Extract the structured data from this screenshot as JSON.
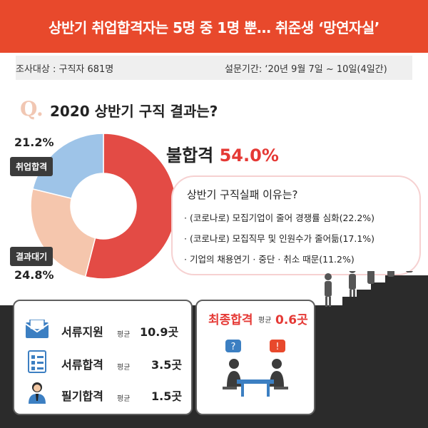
{
  "banner": {
    "title": "상반기 취업합격자는 5명 중 1명 뿐… 취준생 ‘망연자실’"
  },
  "survey": {
    "target": "조사대상 : 구직자 681명",
    "period": "설문기간: ‘20년 9월 7일 ~ 10일(4일간)"
  },
  "question": {
    "mark": "Q.",
    "text": "2020 상반기 구직 결과는?"
  },
  "chart_data": {
    "type": "pie",
    "title": "2020 상반기 구직 결과는?",
    "donut": true,
    "slices": [
      {
        "label": "불합격",
        "value": 54.0,
        "value_label": "54.0%",
        "color": "#e34b45"
      },
      {
        "label": "결과대기",
        "value": 24.8,
        "value_label": "24.8%",
        "color": "#f5c6ad"
      },
      {
        "label": "취업합격",
        "value": 21.2,
        "value_label": "21.2%",
        "color": "#9ec4e8"
      }
    ]
  },
  "reasons": {
    "title": "상반기 구직실패 이유는?",
    "items": [
      "· (코로나로) 모집기업이 줄어 경쟁률 심화(22.2%)",
      "· (코로나로) 모집직무 및 인원수가 줄어듦(17.1%)",
      "· 기업의 채용연기 · 중단 · 취소 때문(11.2%)"
    ]
  },
  "stats": [
    {
      "label": "서류지원",
      "avg": "평균",
      "value": "10.9곳",
      "icon": "envelope-icon"
    },
    {
      "label": "서류합격",
      "avg": "평균",
      "value": "3.5곳",
      "icon": "checklist-icon"
    },
    {
      "label": "필기합격",
      "avg": "평균",
      "value": "1.5곳",
      "icon": "person-icon"
    }
  ],
  "final": {
    "label": "최종합격",
    "avg": "평균",
    "value": "0.6곳",
    "icon": "interview-icon"
  },
  "colors": {
    "accent": "#e8492c",
    "fail": "#e53935",
    "dark": "#3b3b3b"
  }
}
